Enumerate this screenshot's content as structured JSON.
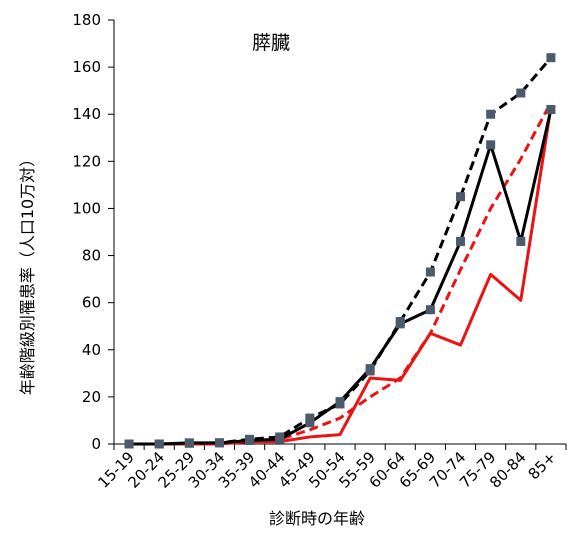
{
  "chart_data": {
    "type": "line",
    "title": "膵臓",
    "xlabel": "診断時の年齢",
    "ylabel": "年齢階級別罹患率（人口10万対）",
    "ylim": [
      0,
      180
    ],
    "yticks": [
      0,
      20,
      40,
      60,
      80,
      100,
      120,
      140,
      160,
      180
    ],
    "grid": false,
    "legend": "none",
    "categories": [
      "15-19",
      "20-24",
      "25-29",
      "30-34",
      "35-39",
      "40-44",
      "45-49",
      "50-54",
      "55-59",
      "60-64",
      "65-69",
      "70-74",
      "75-79",
      "80-84",
      "85+"
    ],
    "series": [
      {
        "color": "#000000",
        "dash": false,
        "markers": true,
        "values": [
          0,
          0,
          0.5,
          0.5,
          1.5,
          2,
          9,
          18,
          32,
          51,
          57,
          86,
          127,
          86,
          142
        ]
      },
      {
        "color": "#000000",
        "dash": true,
        "markers": true,
        "values": [
          0,
          0,
          0.3,
          0.5,
          2,
          3,
          11,
          17,
          31,
          52,
          73,
          105,
          140,
          149,
          164
        ]
      },
      {
        "color": "#ee1111",
        "dash": false,
        "markers": false,
        "values": [
          0,
          0,
          0,
          0,
          1,
          1,
          3,
          4,
          28,
          27,
          47,
          42,
          72,
          61,
          143
        ]
      },
      {
        "color": "#ee1111",
        "dash": true,
        "markers": false,
        "values": [
          0,
          0,
          0,
          0.3,
          1,
          2,
          6,
          11,
          20,
          28,
          47,
          74,
          100,
          121,
          145
        ]
      }
    ],
    "marker_color": "#4d5a6b"
  }
}
